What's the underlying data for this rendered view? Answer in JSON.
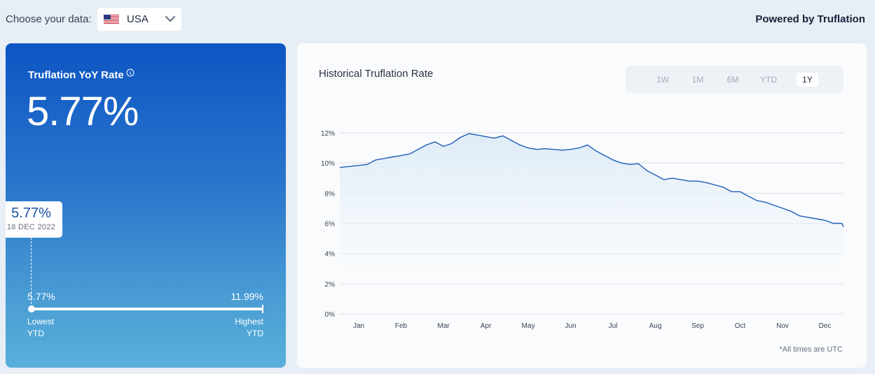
{
  "header": {
    "choose_label": "Choose your data:",
    "country": "USA",
    "country_flag_icon": "us-flag-icon",
    "powered_by": "Powered by Truflation"
  },
  "rate_card": {
    "title": "Truflation YoY Rate",
    "rate": "5.77%",
    "marker_value": "5.77%",
    "marker_date": "18 DEC 2022",
    "range_low_value": "5.77%",
    "range_high_value": "11.99%",
    "range_low_label_1": "Lowest",
    "range_low_label_2": "YTD",
    "range_high_label_1": "Highest",
    "range_high_label_2": "YTD"
  },
  "history": {
    "title": "Historical Truflation Rate",
    "tabs": [
      "1W",
      "1M",
      "6M",
      "YTD",
      "1Y"
    ],
    "active_tab": "1Y",
    "footnote": "*All times are UTC"
  },
  "colors": {
    "line": "#1e5db8",
    "fill_top": "#d9e9f6",
    "grid": "#d9dde6"
  },
  "chart_data": {
    "type": "area",
    "title": "",
    "xlabel": "",
    "ylabel": "",
    "categories": [
      "Jan",
      "Feb",
      "Mar",
      "Apr",
      "May",
      "Jun",
      "Jul",
      "Aug",
      "Sep",
      "Oct",
      "Nov",
      "Dec"
    ],
    "y_ticks": [
      "0%",
      "2%",
      "4%",
      "6%",
      "8%",
      "10%",
      "12%"
    ],
    "ylim": [
      0,
      12
    ],
    "grid": true,
    "legend": "none",
    "series": [
      {
        "x": [
          0,
          0.2,
          0.4,
          0.6,
          0.8,
          1.0,
          1.2,
          1.4,
          1.6,
          1.8,
          2.0,
          2.2,
          2.4,
          2.6,
          2.8,
          3.0,
          3.2,
          3.4,
          3.6,
          3.8,
          4.0,
          4.2,
          4.4,
          4.6,
          4.8,
          5.0,
          5.2,
          5.4,
          5.6,
          5.8,
          6.0,
          6.2,
          6.4,
          6.6,
          6.8,
          7.0,
          7.2,
          7.4,
          7.6,
          7.8,
          8.0,
          8.2,
          8.4,
          8.6,
          8.8,
          9.0,
          9.2,
          9.4,
          9.6,
          9.8,
          10.0,
          10.2,
          10.4,
          10.6,
          10.8,
          11.0,
          11.2,
          11.4,
          11.75
        ],
        "values": [
          9.7,
          9.9,
          10.2,
          10.3,
          10.4,
          10.5,
          10.6,
          10.9,
          11.2,
          11.4,
          11.1,
          11.3,
          11.7,
          11.95,
          11.85,
          11.75,
          11.65,
          11.8,
          11.5,
          11.2,
          11.0,
          10.9,
          10.95,
          10.9,
          10.85,
          10.9,
          11.0,
          11.2,
          10.8,
          10.5,
          10.2,
          10.0,
          9.9,
          9.95,
          9.5,
          9.2,
          8.9,
          9.0,
          8.9,
          8.8,
          8.8,
          8.7,
          8.55,
          8.4,
          8.1,
          8.1,
          7.8,
          7.5,
          7.4,
          7.2,
          7.0,
          6.8,
          6.5,
          6.4,
          6.3,
          6.2,
          6.0,
          6.0,
          5.77
        ]
      }
    ]
  }
}
